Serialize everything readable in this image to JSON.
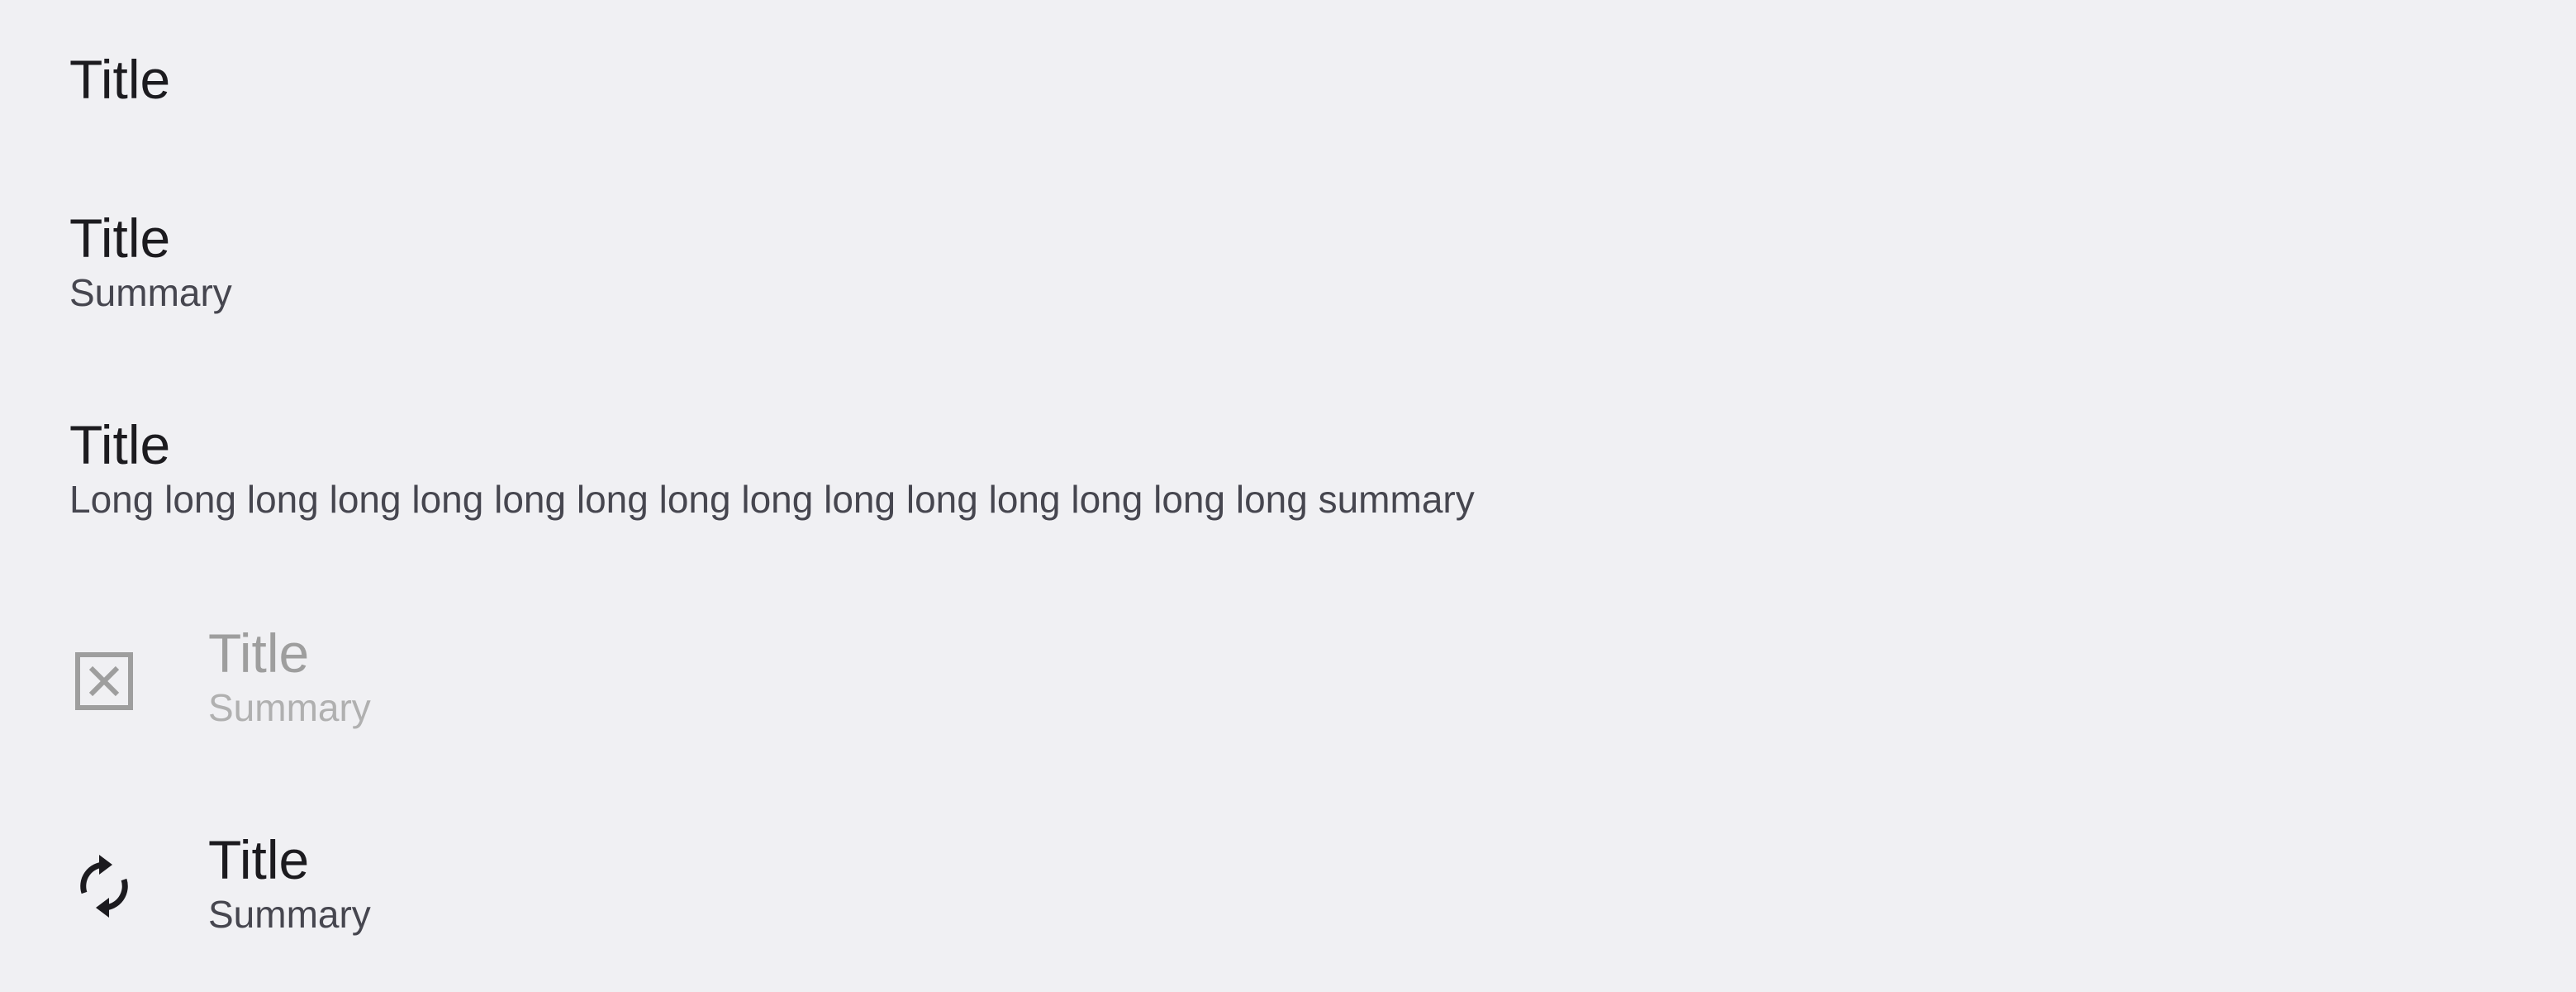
{
  "preferences": [
    {
      "title": "Title"
    },
    {
      "title": "Title",
      "summary": "Summary"
    },
    {
      "title": "Title",
      "summary": "Long long long long long long long long long long long long long long long summary"
    },
    {
      "title": "Title",
      "summary": "Summary",
      "icon": "disabled-box-icon",
      "enabled": false
    },
    {
      "title": "Title",
      "summary": "Summary",
      "icon": "sync-icon",
      "enabled": true
    }
  ],
  "colors": {
    "background": "#f0f0f3",
    "title": "#1c1b1f",
    "summary": "#46464f",
    "disabled_title": "#9e9e9e",
    "disabled_summary": "#b0b0b0",
    "disabled_icon": "#9e9e9e",
    "icon": "#1c1b1f"
  }
}
